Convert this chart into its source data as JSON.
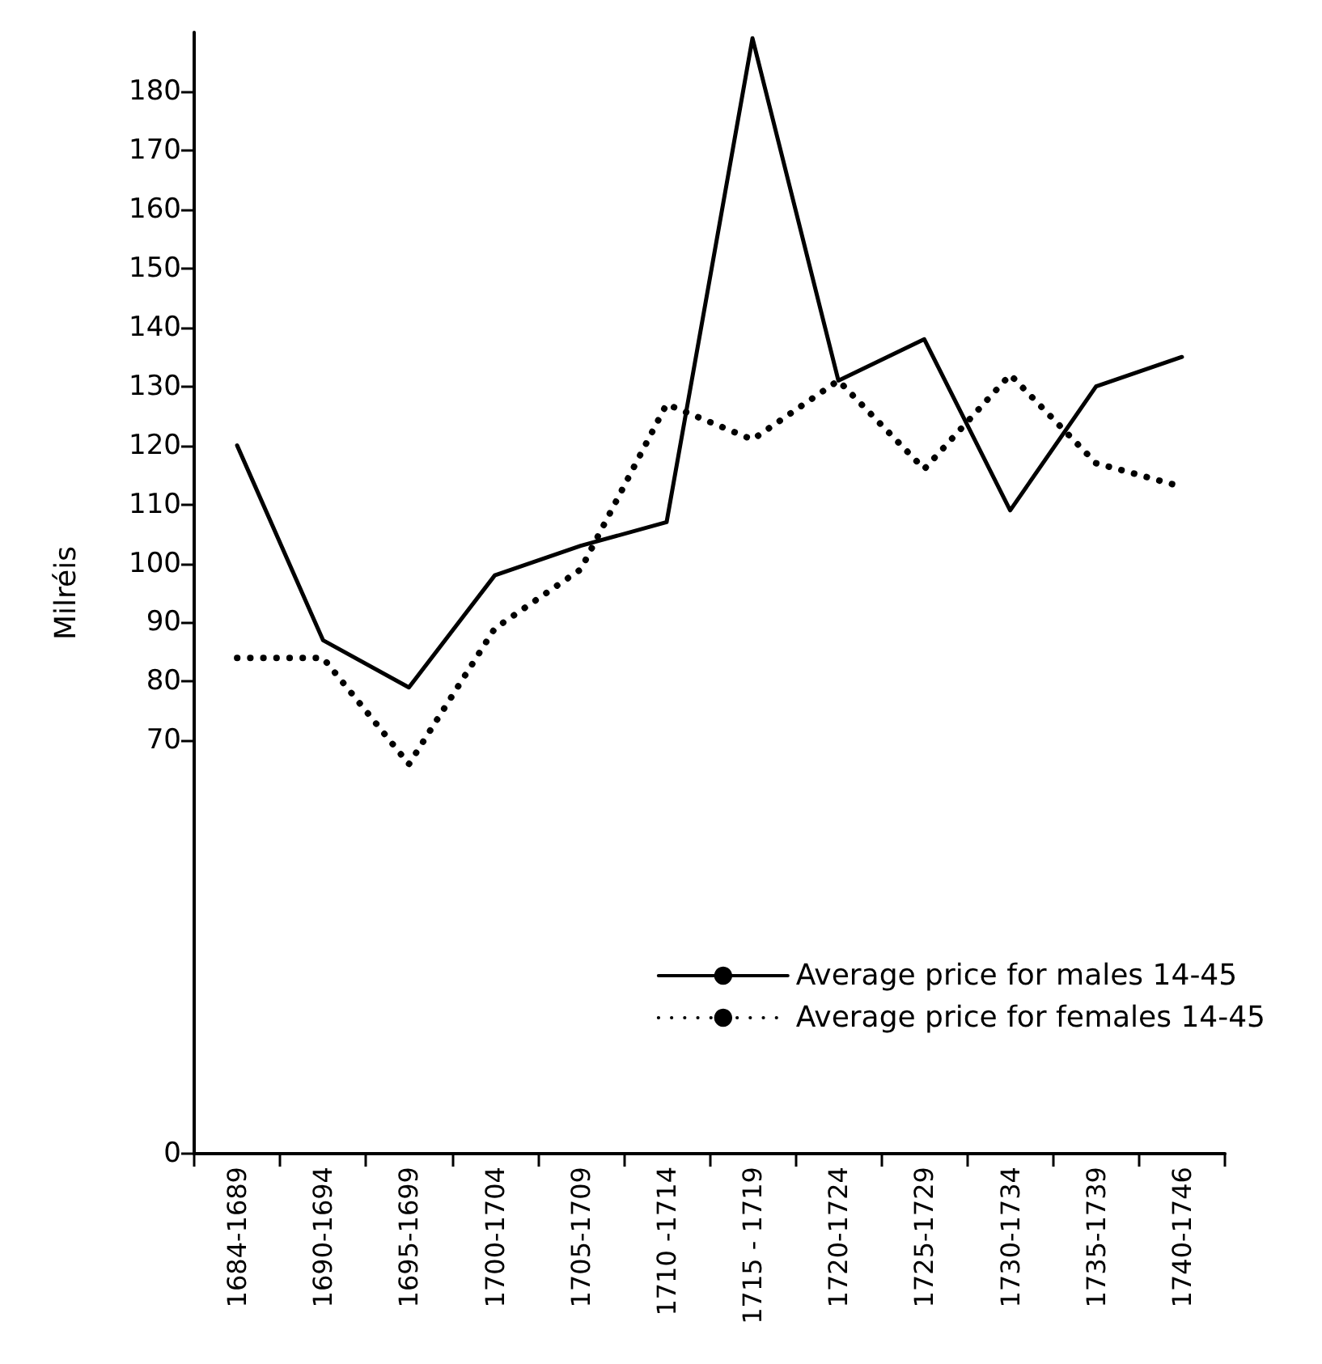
{
  "chart_data": {
    "type": "line",
    "ylabel": "Milréis",
    "categories": [
      "1684-1689",
      "1690-1694",
      "1695-1699",
      "1700-1704",
      "1705-1709",
      "1710 -1714",
      "1715 - 1719",
      "1720-1724",
      "1725-1729",
      "1730-1734",
      "1735-1739",
      "1740-1746"
    ],
    "series": [
      {
        "name": "Average price for males 14-45",
        "color": "#000000",
        "line_style": "solid",
        "values": [
          120,
          87,
          79,
          98,
          103,
          107,
          189,
          131,
          138,
          109,
          130,
          135
        ]
      },
      {
        "name": "Average price for females 14-45",
        "color": "#000000",
        "line_style": "dotted",
        "values": [
          84,
          84,
          66,
          89,
          99,
          127,
          121,
          131,
          116,
          132,
          117,
          113
        ]
      }
    ],
    "ylim": [
      0,
      190
    ],
    "yticks": [
      0,
      70,
      80,
      90,
      100,
      110,
      120,
      130,
      140,
      150,
      160,
      170,
      180
    ],
    "grid": false,
    "legend": "bottom right",
    "marker": "none"
  }
}
